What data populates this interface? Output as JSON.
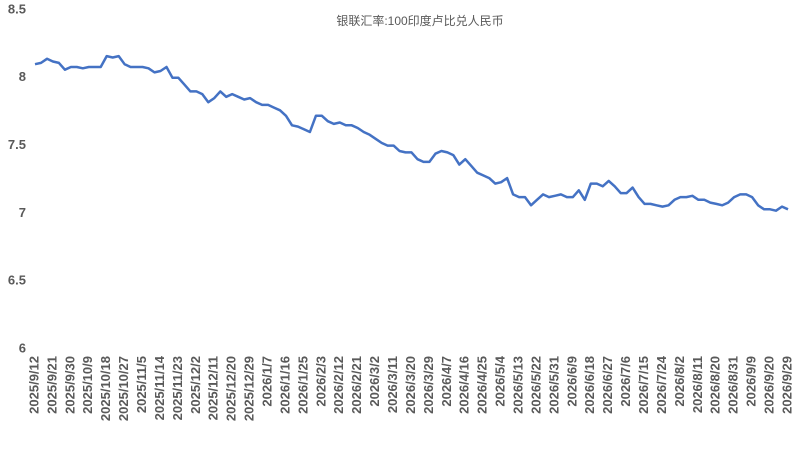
{
  "chart_data": {
    "type": "line",
    "title": "银联汇率:100印度卢比兑人民币",
    "categories": [
      "2025/9/12",
      null,
      null,
      "2025/9/21",
      null,
      null,
      "2025/9/30",
      null,
      null,
      "2025/10/9",
      null,
      null,
      "2025/10/18",
      null,
      null,
      "2025/10/27",
      null,
      null,
      "2025/11/5",
      null,
      null,
      "2025/11/14",
      null,
      null,
      "2025/11/23",
      null,
      null,
      "2025/12/2",
      null,
      null,
      "2025/12/11",
      null,
      null,
      "2025/12/20",
      null,
      null,
      "2025/12/29",
      null,
      null,
      "2026/1/7",
      null,
      null,
      "2026/1/16",
      null,
      null,
      "2026/1/25",
      null,
      null,
      "2026/2/3",
      null,
      null,
      "2026/2/12",
      null,
      null,
      "2026/2/21",
      null,
      null,
      "2026/3/2",
      null,
      null,
      "2026/3/11",
      null,
      null,
      "2026/3/20",
      null,
      null,
      "2026/3/29",
      null,
      null,
      "2026/4/7",
      null,
      null,
      "2026/4/16",
      null,
      null,
      "2026/4/25",
      null,
      null,
      "2026/5/4",
      null,
      null,
      "2026/5/13",
      null,
      null,
      "2026/5/22",
      null,
      null,
      "2026/5/31",
      null,
      null,
      "2026/6/9",
      null,
      null,
      "2026/6/18",
      null,
      null,
      "2026/6/27",
      null,
      null,
      "2026/7/6",
      null,
      null,
      "2026/7/15",
      null,
      null,
      "2026/7/24",
      null,
      null,
      "2026/8/2",
      null,
      null,
      "2026/8/11",
      null,
      null,
      "2026/8/20",
      null,
      null,
      "2026/8/31",
      null,
      null,
      "2026/9/9",
      null,
      null,
      "2026/9/20",
      null,
      null,
      "2026/9/29"
    ],
    "values": [
      8.1,
      8.11,
      8.14,
      8.12,
      8.11,
      8.06,
      8.08,
      8.08,
      8.07,
      8.08,
      8.08,
      8.08,
      8.16,
      8.15,
      8.16,
      8.1,
      8.08,
      8.08,
      8.08,
      8.07,
      8.04,
      8.05,
      8.08,
      8.0,
      8.0,
      7.95,
      7.9,
      7.9,
      7.88,
      7.82,
      7.85,
      7.9,
      7.86,
      7.88,
      7.86,
      7.84,
      7.85,
      7.82,
      7.8,
      7.8,
      7.78,
      7.76,
      7.72,
      7.65,
      7.64,
      7.62,
      7.6,
      7.72,
      7.72,
      7.68,
      7.66,
      7.67,
      7.65,
      7.65,
      7.63,
      7.6,
      7.58,
      7.55,
      7.52,
      7.5,
      7.5,
      7.46,
      7.45,
      7.45,
      7.4,
      7.38,
      7.38,
      7.44,
      7.46,
      7.45,
      7.43,
      7.36,
      7.4,
      7.35,
      7.3,
      7.28,
      7.26,
      7.22,
      7.23,
      7.26,
      7.14,
      7.12,
      7.12,
      7.06,
      7.1,
      7.14,
      7.12,
      7.13,
      7.14,
      7.12,
      7.12,
      7.17,
      7.1,
      7.22,
      7.22,
      7.2,
      7.24,
      7.2,
      7.15,
      7.15,
      7.19,
      7.12,
      7.07,
      7.07,
      7.06,
      7.05,
      7.06,
      7.1,
      7.12,
      7.12,
      7.13,
      7.1,
      7.1,
      7.08,
      7.07,
      7.06,
      7.08,
      7.12,
      7.14,
      7.14,
      7.12,
      7.06,
      7.03,
      7.03,
      7.02,
      7.05,
      7.03
    ],
    "color": "#4472c4",
    "ylim": [
      6,
      8.5
    ],
    "yticks": [
      6,
      6.5,
      7,
      7.5,
      8,
      8.5
    ],
    "grid": false
  }
}
